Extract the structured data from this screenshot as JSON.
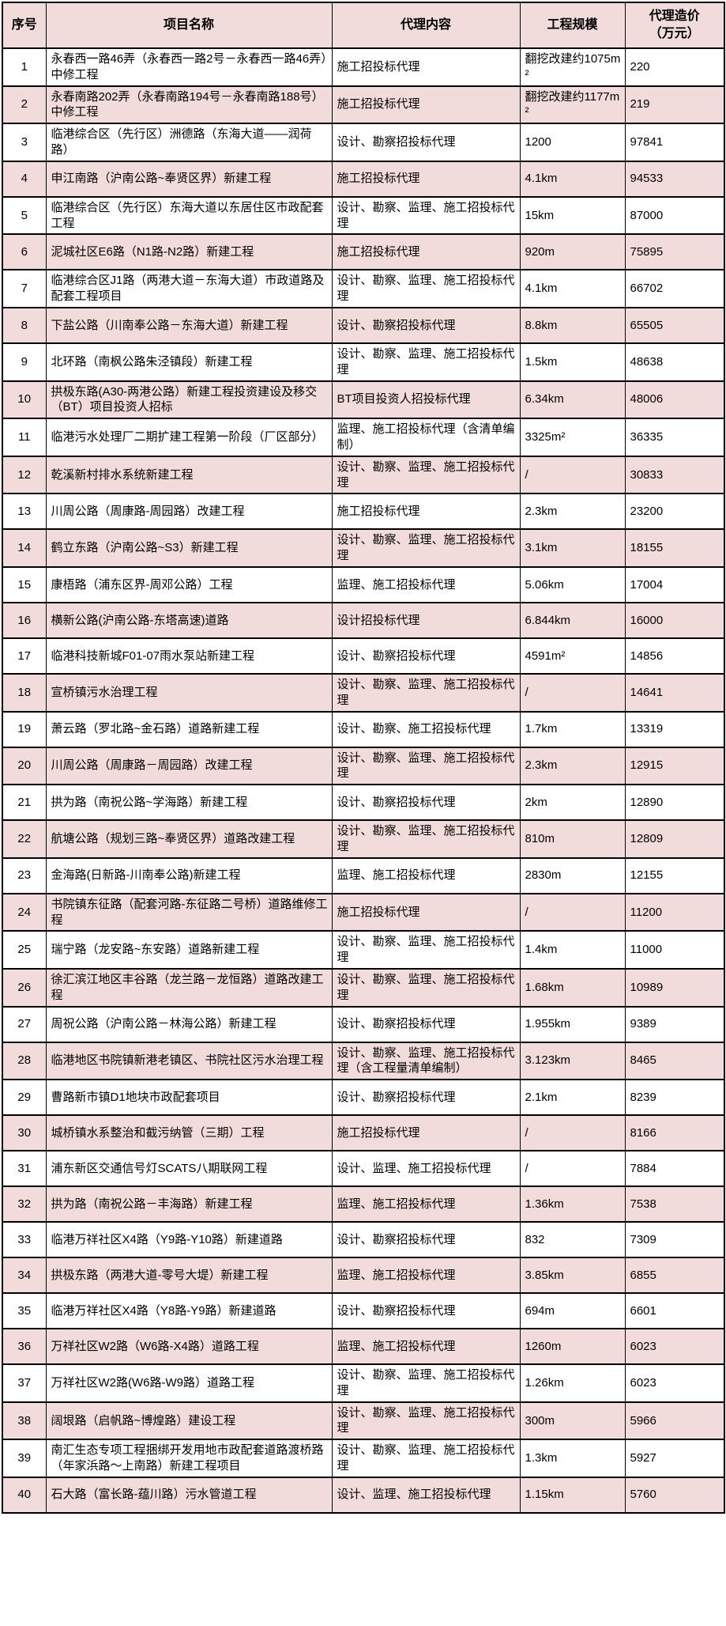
{
  "colors": {
    "header_bg": "#f2dcdb",
    "alt_row_bg": "#f2dcdb",
    "base_row_bg": "#ffffff",
    "border": "#000000",
    "text": "#000000"
  },
  "table": {
    "columns": [
      {
        "key": "index",
        "label": "序号"
      },
      {
        "key": "name",
        "label": "项目名称"
      },
      {
        "key": "agency",
        "label": "代理内容"
      },
      {
        "key": "scale",
        "label": "工程规模"
      },
      {
        "key": "cost",
        "label": "代理造价\n（万元）"
      }
    ],
    "rows": [
      {
        "index": "1",
        "name": "永春西一路46弄（永春西一路2号－永春西一路46弄）中修工程",
        "agency": "施工招投标代理",
        "scale": "翻挖改建约1075m²",
        "cost": "220"
      },
      {
        "index": "2",
        "name": "永春南路202弄（永春南路194号－永春南路188号）中修工程",
        "agency": "施工招投标代理",
        "scale": "翻挖改建约1177m²",
        "cost": "219"
      },
      {
        "index": "3",
        "name": "临港综合区（先行区）洲德路（东海大道——润荷路）",
        "agency": "设计、勘察招投标代理",
        "scale": "1200",
        "cost": "97841"
      },
      {
        "index": "4",
        "name": "申江南路（沪南公路~奉贤区界）新建工程",
        "agency": "施工招投标代理",
        "scale": "4.1km",
        "cost": "94533"
      },
      {
        "index": "5",
        "name": "临港综合区（先行区）东海大道以东居住区市政配套工程",
        "agency": "设计、勘察、监理、施工招投标代理",
        "scale": "15km",
        "cost": "87000"
      },
      {
        "index": "6",
        "name": "泥城社区E6路（N1路-N2路）新建工程",
        "agency": "施工招投标代理",
        "scale": "920m",
        "cost": "75895"
      },
      {
        "index": "7",
        "name": "临港综合区J1路（两港大道－东海大道）市政道路及配套工程项目",
        "agency": "设计、勘察、监理、施工招投标代理",
        "scale": "4.1km",
        "cost": "66702"
      },
      {
        "index": "8",
        "name": "下盐公路（川南奉公路－东海大道）新建工程",
        "agency": "设计、勘察招投标代理",
        "scale": "8.8km",
        "cost": "65505"
      },
      {
        "index": "9",
        "name": "北环路（南枫公路朱泾镇段）新建工程",
        "agency": "设计、勘察、监理、施工招投标代理",
        "scale": "1.5km",
        "cost": "48638"
      },
      {
        "index": "10",
        "name": "拱极东路(A30-两港公路）新建工程投资建设及移交（BT）项目投资人招标",
        "agency": "BT项目投资人招投标代理",
        "scale": "6.34km",
        "cost": "48006"
      },
      {
        "index": "11",
        "name": "临港污水处理厂二期扩建工程第一阶段（厂区部分）",
        "agency": "监理、施工招投标代理（含清单编制）",
        "scale": "3325m²",
        "cost": "36335"
      },
      {
        "index": "12",
        "name": "乾溪新村排水系统新建工程",
        "agency": "设计、勘察、监理、施工招投标代理",
        "scale": "/",
        "cost": "30833"
      },
      {
        "index": "13",
        "name": "川周公路（周康路-周园路）改建工程",
        "agency": "施工招投标代理",
        "scale": "2.3km",
        "cost": "23200"
      },
      {
        "index": "14",
        "name": "鹤立东路（沪南公路~S3）新建工程",
        "agency": "设计、勘察、监理、施工招投标代理",
        "scale": "3.1km",
        "cost": "18155"
      },
      {
        "index": "15",
        "name": "康梧路（浦东区界-周邓公路）工程",
        "agency": "监理、施工招投标代理",
        "scale": "5.06km",
        "cost": "17004"
      },
      {
        "index": "16",
        "name": "横新公路(沪南公路-东塔高速)道路",
        "agency": "设计招投标代理",
        "scale": "6.844km",
        "cost": "16000"
      },
      {
        "index": "17",
        "name": "临港科技新城F01-07雨水泵站新建工程",
        "agency": "设计、勘察招投标代理",
        "scale": "4591m²",
        "cost": "14856"
      },
      {
        "index": "18",
        "name": "宣桥镇污水治理工程",
        "agency": "设计、勘察、监理、施工招投标代理",
        "scale": "/",
        "cost": "14641"
      },
      {
        "index": "19",
        "name": "萧云路（罗北路~金石路）道路新建工程",
        "agency": "设计、勘察、施工招投标代理",
        "scale": "1.7km",
        "cost": "13319"
      },
      {
        "index": "20",
        "name": "川周公路（周康路－周园路）改建工程",
        "agency": "设计、勘察、监理、施工招投标代理",
        "scale": "2.3km",
        "cost": "12915"
      },
      {
        "index": "21",
        "name": "拱为路（南祝公路~学海路）新建工程",
        "agency": "设计、勘察招投标代理",
        "scale": "2km",
        "cost": "12890"
      },
      {
        "index": "22",
        "name": "航塘公路（规划三路~奉贤区界）道路改建工程",
        "agency": "设计、勘察、监理、施工招投标代理",
        "scale": "810m",
        "cost": "12809"
      },
      {
        "index": "23",
        "name": "金海路(日新路-川南奉公路)新建工程",
        "agency": "监理、施工招投标代理",
        "scale": "2830m",
        "cost": "12155"
      },
      {
        "index": "24",
        "name": "书院镇东征路（配套河路-东征路二号桥）道路维修工程",
        "agency": "施工招投标代理",
        "scale": "/",
        "cost": "11200"
      },
      {
        "index": "25",
        "name": "瑞宁路（龙安路~东安路）道路新建工程",
        "agency": "设计、勘察、监理、施工招投标代理",
        "scale": "1.4km",
        "cost": "11000"
      },
      {
        "index": "26",
        "name": "徐汇滨江地区丰谷路（龙兰路－龙恒路）道路改建工程",
        "agency": "设计、勘察、监理、施工招投标代理",
        "scale": "1.68km",
        "cost": "10989"
      },
      {
        "index": "27",
        "name": "周祝公路（沪南公路－林海公路）新建工程",
        "agency": "设计、勘察招投标代理",
        "scale": "1.955km",
        "cost": "9389"
      },
      {
        "index": "28",
        "name": "临港地区书院镇新港老镇区、书院社区污水治理工程",
        "agency": "设计、勘察、监理、施工招投标代理（含工程量清单编制）",
        "scale": "3.123km",
        "cost": "8465"
      },
      {
        "index": "29",
        "name": "曹路新市镇D1地块市政配套项目",
        "agency": "设计、勘察招投标代理",
        "scale": "2.1km",
        "cost": "8239"
      },
      {
        "index": "30",
        "name": "城桥镇水系整治和截污纳管（三期）工程",
        "agency": "施工招投标代理",
        "scale": "/",
        "cost": "8166"
      },
      {
        "index": "31",
        "name": "浦东新区交通信号灯SCATS八期联网工程",
        "agency": "设计、监理、施工招投标代理",
        "scale": "/",
        "cost": "7884"
      },
      {
        "index": "32",
        "name": "拱为路（南祝公路－丰海路）新建工程",
        "agency": "监理、施工招投标代理",
        "scale": "1.36km",
        "cost": "7538"
      },
      {
        "index": "33",
        "name": "临港万祥社区X4路（Y9路-Y10路）新建道路",
        "agency": "设计、勘察招投标代理",
        "scale": "832",
        "cost": "7309"
      },
      {
        "index": "34",
        "name": "拱极东路（两港大道-零号大堤）新建工程",
        "agency": "监理、施工招投标代理",
        "scale": "3.85km",
        "cost": "6855"
      },
      {
        "index": "35",
        "name": "临港万祥社区X4路（Y8路-Y9路）新建道路",
        "agency": "设计、勘察招投标代理",
        "scale": "694m",
        "cost": "6601"
      },
      {
        "index": "36",
        "name": "万祥社区W2路（W6路-X4路）道路工程",
        "agency": "监理、施工招投标代理",
        "scale": "1260m",
        "cost": "6023"
      },
      {
        "index": "37",
        "name": "万祥社区W2路(W6路-W9路）道路工程",
        "agency": "设计、勘察、监理、施工招投标代理",
        "scale": "1.26km",
        "cost": "6023"
      },
      {
        "index": "38",
        "name": "阔垠路（启帆路~博煌路）建设工程",
        "agency": "设计、勘察、监理、施工招投标代理",
        "scale": "300m",
        "cost": "5966"
      },
      {
        "index": "39",
        "name": "南汇生态专项工程捆绑开发用地市政配套道路渡桥路（年家浜路～上南路）新建工程项目",
        "agency": "设计、勘察、监理、施工招投标代理",
        "scale": "1.3km",
        "cost": "5927"
      },
      {
        "index": "40",
        "name": "石大路（富长路-蕴川路）污水管道工程",
        "agency": "设计、监理、施工招投标代理",
        "scale": "1.15km",
        "cost": "5760"
      }
    ]
  }
}
